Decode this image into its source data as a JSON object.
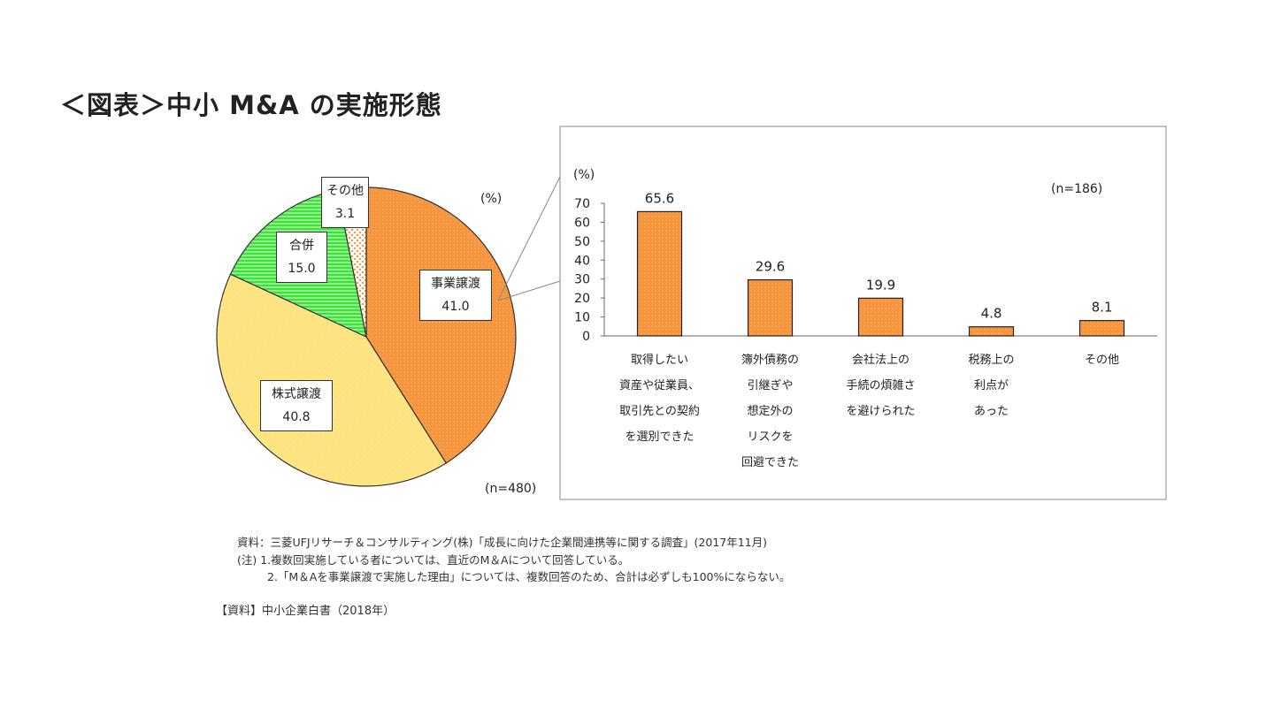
{
  "title": "＜図表＞中小 M&A の実施形態",
  "chart_data": [
    {
      "type": "pie",
      "unit_label": "(%)",
      "n_label": "(n=480)",
      "slices": [
        {
          "label": "事業譲渡",
          "value": 41.0,
          "value_label": "41.0",
          "color": "#f7953c"
        },
        {
          "label": "株式譲渡",
          "value": 40.8,
          "value_label": "40.8",
          "color": "#ffe27a"
        },
        {
          "label": "合併",
          "value": 15.0,
          "value_label": "15.0",
          "color": "#3de23a"
        },
        {
          "label": "その他",
          "value": 3.1,
          "value_label": "3.1",
          "color": "#fbd2b0"
        }
      ]
    },
    {
      "type": "bar",
      "title": "「M＆Aを事業譲渡で実施した理由」",
      "ylabel": "(%)",
      "n_label": "(n=186)",
      "ylim": [
        0,
        70
      ],
      "yticks": [
        0,
        10,
        20,
        30,
        40,
        50,
        60,
        70
      ],
      "categories": [
        "取得したい\n資産や従業員、\n取引先との契約\nを選別できた",
        "簿外債務の\n引継ぎや\n想定外の\nリスクを\n回避できた",
        "会社法上の\n手続の煩雑さ\nを避けられた",
        "税務上の\n利点が\nあった",
        "その他"
      ],
      "values": [
        65.6,
        29.6,
        19.9,
        4.8,
        8.1
      ],
      "value_labels": [
        "65.6",
        "29.6",
        "19.9",
        "4.8",
        "8.1"
      ],
      "bar_color": "#f7953c"
    }
  ],
  "notes": {
    "source": "資料：三菱UFJリサーチ＆コンサルティング(株)「成長に向けた企業間連携等に関する調査」(2017年11月)",
    "note1": "(注) 1.複数回実施している者については、直近のM＆Aについて回答している。",
    "note2": "2.「M＆Aを事業譲渡で実施した理由」については、複数回答のため、合計は必ずしも100%にならない。",
    "reference": "【資料】中小企業白書（2018年）"
  }
}
